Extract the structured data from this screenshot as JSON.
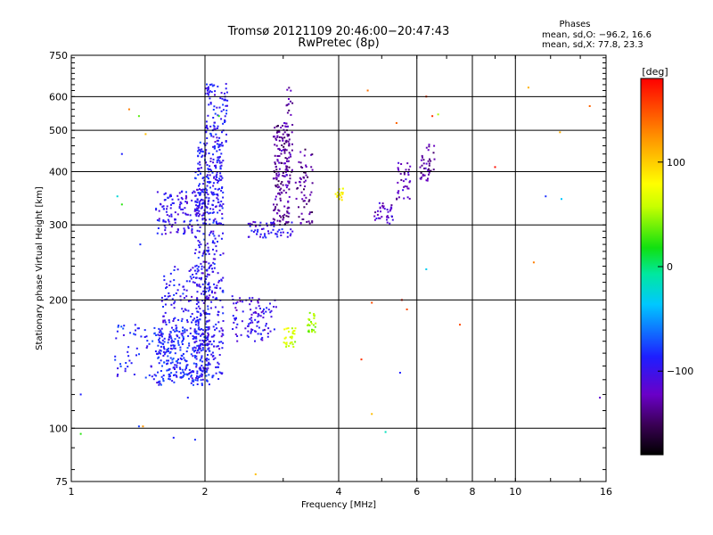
{
  "chart_data": {
    "type": "scatter",
    "title": "Tromsø 20121109 20:46:00−20:47:43",
    "subtitle": "RwPretec (8p)",
    "xlabel": "Frequency [MHz]",
    "ylabel": "Stationary phase Virtual Height [km]",
    "x_scale": "log",
    "y_scale": "log",
    "xlim": [
      1,
      16
    ],
    "ylim": [
      75,
      750
    ],
    "x_ticks": [
      1,
      2,
      4,
      6,
      8,
      10,
      16
    ],
    "x_tick_labels": [
      "1",
      "2",
      "4",
      "6",
      "8",
      "10",
      "16"
    ],
    "y_ticks": [
      75,
      100,
      200,
      300,
      400,
      500,
      600,
      750
    ],
    "y_tick_labels": [
      "75",
      "100",
      "200",
      "300",
      "400",
      "500",
      "600",
      "750"
    ],
    "grid": true,
    "stats": {
      "heading": "Phases",
      "line1": "mean, sd,O: −96.2, 16.6",
      "line2": "mean, sd,X:  77.8, 23.3"
    },
    "colorbar": {
      "label": "[deg]",
      "range": [
        -180,
        180
      ],
      "tick_values": [
        100,
        0,
        -100
      ],
      "tick_labels": [
        "100",
        "0",
        "−100"
      ]
    },
    "clusters": [
      {
        "x_range": [
          1.55,
          2.05
        ],
        "y_range": [
          126,
          172
        ],
        "count": 320,
        "phase": -95
      },
      {
        "x_range": [
          1.6,
          2.05
        ],
        "y_range": [
          172,
          240
        ],
        "count": 130,
        "phase": -100
      },
      {
        "x_range": [
          1.9,
          2.2
        ],
        "y_range": [
          130,
          290
        ],
        "count": 260,
        "phase": -102
      },
      {
        "x_range": [
          1.55,
          2.0
        ],
        "y_range": [
          285,
          360
        ],
        "count": 140,
        "phase": -105
      },
      {
        "x_range": [
          1.9,
          2.2
        ],
        "y_range": [
          300,
          470
        ],
        "count": 240,
        "phase": -100
      },
      {
        "x_range": [
          2.0,
          2.25
        ],
        "y_range": [
          470,
          650
        ],
        "count": 90,
        "phase": -98
      },
      {
        "x_range": [
          1.25,
          1.6
        ],
        "y_range": [
          130,
          175
        ],
        "count": 60,
        "phase": -95
      },
      {
        "x_range": [
          2.3,
          2.9
        ],
        "y_range": [
          160,
          205
        ],
        "count": 100,
        "phase": -108
      },
      {
        "x_range": [
          2.5,
          3.15
        ],
        "y_range": [
          280,
          305
        ],
        "count": 60,
        "phase": -105
      },
      {
        "x_range": [
          2.85,
          3.1
        ],
        "y_range": [
          300,
          520
        ],
        "count": 170,
        "phase": -135
      },
      {
        "x_range": [
          3.0,
          3.15
        ],
        "y_range": [
          380,
          640
        ],
        "count": 40,
        "phase": -130
      },
      {
        "x_range": [
          3.2,
          3.5
        ],
        "y_range": [
          300,
          460
        ],
        "count": 60,
        "phase": -135
      },
      {
        "x_range": [
          4.8,
          5.3
        ],
        "y_range": [
          300,
          340
        ],
        "count": 35,
        "phase": -120
      },
      {
        "x_range": [
          5.4,
          5.8
        ],
        "y_range": [
          340,
          420
        ],
        "count": 35,
        "phase": -125
      },
      {
        "x_range": [
          6.1,
          6.6
        ],
        "y_range": [
          380,
          470
        ],
        "count": 40,
        "phase": -130
      },
      {
        "x_range": [
          3.0,
          3.2
        ],
        "y_range": [
          155,
          172
        ],
        "count": 30,
        "phase": 60
      },
      {
        "x_range": [
          3.4,
          3.55
        ],
        "y_range": [
          168,
          188
        ],
        "count": 25,
        "phase": 45
      },
      {
        "x_range": [
          3.9,
          4.1
        ],
        "y_range": [
          340,
          365
        ],
        "count": 15,
        "phase": 80
      }
    ],
    "points": [
      {
        "x": 1.05,
        "y": 120,
        "phase": -95
      },
      {
        "x": 1.05,
        "y": 97,
        "phase": 20
      },
      {
        "x": 1.3,
        "y": 440,
        "phase": -95
      },
      {
        "x": 1.35,
        "y": 560,
        "phase": 130
      },
      {
        "x": 1.42,
        "y": 540,
        "phase": 30
      },
      {
        "x": 1.47,
        "y": 490,
        "phase": 105
      },
      {
        "x": 1.43,
        "y": 270,
        "phase": -90
      },
      {
        "x": 1.42,
        "y": 101,
        "phase": -85
      },
      {
        "x": 1.45,
        "y": 101,
        "phase": 120
      },
      {
        "x": 1.27,
        "y": 350,
        "phase": -30
      },
      {
        "x": 1.3,
        "y": 335,
        "phase": 20
      },
      {
        "x": 2.6,
        "y": 78,
        "phase": 105
      },
      {
        "x": 2.15,
        "y": 540,
        "phase": 20
      },
      {
        "x": 4.5,
        "y": 145,
        "phase": 160
      },
      {
        "x": 4.65,
        "y": 620,
        "phase": 135
      },
      {
        "x": 4.75,
        "y": 197,
        "phase": 150
      },
      {
        "x": 4.75,
        "y": 108,
        "phase": 105
      },
      {
        "x": 5.4,
        "y": 520,
        "phase": 140
      },
      {
        "x": 5.55,
        "y": 200,
        "phase": 170
      },
      {
        "x": 5.7,
        "y": 190,
        "phase": 150
      },
      {
        "x": 6.3,
        "y": 600,
        "phase": 160
      },
      {
        "x": 6.5,
        "y": 540,
        "phase": 160
      },
      {
        "x": 6.7,
        "y": 545,
        "phase": 50
      },
      {
        "x": 6.3,
        "y": 236,
        "phase": -40
      },
      {
        "x": 5.5,
        "y": 135,
        "phase": -95
      },
      {
        "x": 5.1,
        "y": 98,
        "phase": -20
      },
      {
        "x": 7.5,
        "y": 175,
        "phase": 150
      },
      {
        "x": 9.0,
        "y": 410,
        "phase": 175
      },
      {
        "x": 10.7,
        "y": 630,
        "phase": 110
      },
      {
        "x": 11.0,
        "y": 245,
        "phase": 130
      },
      {
        "x": 12.6,
        "y": 495,
        "phase": 110
      },
      {
        "x": 12.7,
        "y": 345,
        "phase": -45
      },
      {
        "x": 11.7,
        "y": 350,
        "phase": -90
      },
      {
        "x": 14.7,
        "y": 570,
        "phase": 140
      },
      {
        "x": 15.5,
        "y": 118,
        "phase": -120
      },
      {
        "x": 1.7,
        "y": 95,
        "phase": -95
      },
      {
        "x": 1.9,
        "y": 94,
        "phase": -90
      },
      {
        "x": 1.83,
        "y": 118,
        "phase": -95
      }
    ]
  }
}
